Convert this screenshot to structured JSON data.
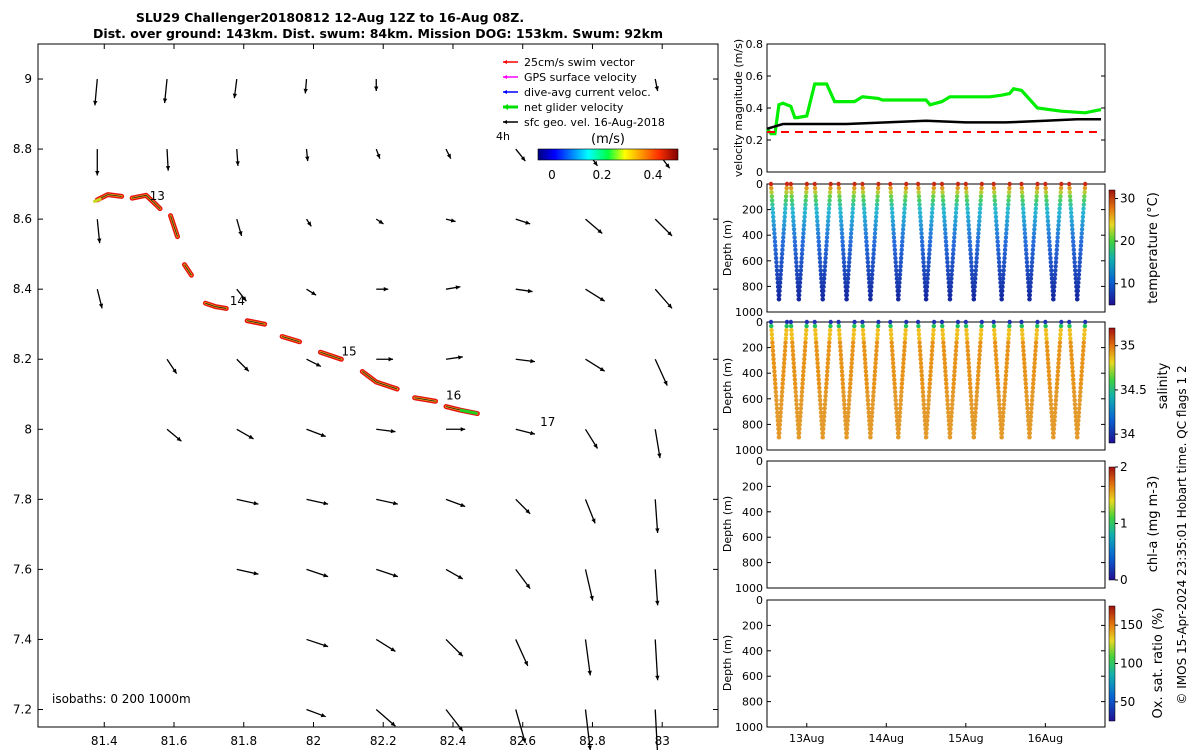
{
  "figure": {
    "title_line1": "SLU29 Challenger20180812 12-Aug 12Z to 16-Aug 08Z.",
    "title_line2": "Dist. over ground: 143km. Dist. swum: 84km. Mission DOG: 153km. Swum: 92km",
    "side_note": "© IMOS 15-Apr-2024 23:35:01 Hobart time. QC flags 1  2"
  },
  "chart_data": [
    {
      "type": "scatter",
      "name": "map",
      "x_ticks": [
        "81.4",
        "81.6",
        "81.8",
        "82",
        "82.2",
        "82.4",
        "82.6",
        "82.8",
        "83"
      ],
      "y_ticks": [
        "9",
        "8.8",
        "8.6",
        "8.4",
        "8.2",
        "8",
        "7.8",
        "7.6",
        "7.4",
        "7.2"
      ],
      "xlim": [
        81.21,
        83.16
      ],
      "ylim": [
        7.15,
        9.1
      ],
      "legend": {
        "placement": "top-right",
        "items": [
          {
            "label": "25cm/s swim vector",
            "color": "#ff0000"
          },
          {
            "label": "GPS surface velocity",
            "color": "#ff00ff"
          },
          {
            "label": "dive-avg current veloc.",
            "color": "#0000ff"
          },
          {
            "label": "net glider velocity",
            "color": "#00dd00"
          },
          {
            "label": "sfc geo. vel. 16-Aug-2018",
            "color": "#000000"
          }
        ]
      },
      "scale_label": "4h",
      "colorbar": {
        "label": "(m/s)",
        "ticks": [
          "0",
          "0.2",
          "0.4"
        ],
        "range": [
          0,
          0.55
        ]
      },
      "isobaths_label": "isobaths: 0   200  1000m",
      "day_labels": [
        {
          "text": "13",
          "x": 81.53,
          "y": 8.655
        },
        {
          "text": "14",
          "x": 81.76,
          "y": 8.355
        },
        {
          "text": "15",
          "x": 82.08,
          "y": 8.21
        },
        {
          "text": "16",
          "x": 82.38,
          "y": 8.085
        },
        {
          "text": "17",
          "x": 82.65,
          "y": 8.01
        }
      ],
      "track_segments": [
        [
          [
            81.38,
            8.655
          ],
          [
            81.41,
            8.67
          ],
          [
            81.45,
            8.665
          ]
        ],
        [
          [
            81.48,
            8.66
          ],
          [
            81.52,
            8.668
          ],
          [
            81.55,
            8.64
          ],
          [
            81.56,
            8.63
          ]
        ],
        [
          [
            81.59,
            8.61
          ],
          [
            81.61,
            8.55
          ]
        ],
        [
          [
            81.63,
            8.47
          ],
          [
            81.65,
            8.44
          ]
        ],
        [
          [
            81.69,
            8.36
          ],
          [
            81.72,
            8.35
          ],
          [
            81.75,
            8.345
          ]
        ],
        [
          [
            81.81,
            8.31
          ],
          [
            81.86,
            8.3
          ]
        ],
        [
          [
            81.91,
            8.265
          ],
          [
            81.96,
            8.25
          ]
        ],
        [
          [
            82.02,
            8.22
          ],
          [
            82.08,
            8.2
          ]
        ],
        [
          [
            82.14,
            8.165
          ],
          [
            82.18,
            8.135
          ],
          [
            82.24,
            8.115
          ]
        ],
        [
          [
            82.29,
            8.09
          ],
          [
            82.35,
            8.08
          ]
        ],
        [
          [
            82.38,
            8.065
          ],
          [
            82.42,
            8.055
          ],
          [
            82.47,
            8.045
          ]
        ]
      ],
      "current_arrows": [
        {
          "lon": 81.38,
          "lat": 9.0,
          "u": -0.02,
          "v": -0.22
        },
        {
          "lon": 81.58,
          "lat": 9.0,
          "u": -0.02,
          "v": -0.2
        },
        {
          "lon": 81.78,
          "lat": 9.0,
          "u": -0.02,
          "v": -0.16
        },
        {
          "lon": 81.98,
          "lat": 9.0,
          "u": -0.01,
          "v": -0.12
        },
        {
          "lon": 82.18,
          "lat": 9.0,
          "u": 0.0,
          "v": -0.1
        },
        {
          "lon": 82.98,
          "lat": 9.0,
          "u": 0.02,
          "v": -0.1
        },
        {
          "lon": 81.38,
          "lat": 8.8,
          "u": 0.0,
          "v": -0.22
        },
        {
          "lon": 81.58,
          "lat": 8.8,
          "u": 0.01,
          "v": -0.18
        },
        {
          "lon": 81.78,
          "lat": 8.8,
          "u": 0.01,
          "v": -0.14
        },
        {
          "lon": 81.98,
          "lat": 8.8,
          "u": 0.01,
          "v": -0.1
        },
        {
          "lon": 82.18,
          "lat": 8.8,
          "u": 0.03,
          "v": -0.08
        },
        {
          "lon": 82.38,
          "lat": 8.8,
          "u": 0.04,
          "v": -0.08
        },
        {
          "lon": 82.58,
          "lat": 8.8,
          "u": 0.08,
          "v": -0.1
        },
        {
          "lon": 82.78,
          "lat": 8.8,
          "u": 0.1,
          "v": -0.14
        },
        {
          "lon": 82.98,
          "lat": 8.8,
          "u": 0.12,
          "v": -0.16
        },
        {
          "lon": 81.38,
          "lat": 8.6,
          "u": 0.02,
          "v": -0.2
        },
        {
          "lon": 81.78,
          "lat": 8.6,
          "u": 0.04,
          "v": -0.14
        },
        {
          "lon": 81.98,
          "lat": 8.6,
          "u": 0.04,
          "v": -0.06
        },
        {
          "lon": 82.18,
          "lat": 8.6,
          "u": 0.06,
          "v": -0.04
        },
        {
          "lon": 82.38,
          "lat": 8.6,
          "u": 0.08,
          "v": -0.02
        },
        {
          "lon": 82.58,
          "lat": 8.6,
          "u": 0.12,
          "v": -0.04
        },
        {
          "lon": 82.78,
          "lat": 8.6,
          "u": 0.14,
          "v": -0.12
        },
        {
          "lon": 82.98,
          "lat": 8.6,
          "u": 0.14,
          "v": -0.14
        },
        {
          "lon": 81.38,
          "lat": 8.4,
          "u": 0.04,
          "v": -0.16
        },
        {
          "lon": 81.78,
          "lat": 8.4,
          "u": 0.08,
          "v": -0.1
        },
        {
          "lon": 81.98,
          "lat": 8.4,
          "u": 0.08,
          "v": -0.05
        },
        {
          "lon": 82.18,
          "lat": 8.4,
          "u": 0.1,
          "v": 0.0
        },
        {
          "lon": 82.38,
          "lat": 8.4,
          "u": 0.12,
          "v": 0.02
        },
        {
          "lon": 82.58,
          "lat": 8.4,
          "u": 0.14,
          "v": -0.02
        },
        {
          "lon": 82.78,
          "lat": 8.4,
          "u": 0.16,
          "v": -0.1
        },
        {
          "lon": 82.98,
          "lat": 8.4,
          "u": 0.14,
          "v": -0.16
        },
        {
          "lon": 81.58,
          "lat": 8.2,
          "u": 0.08,
          "v": -0.12
        },
        {
          "lon": 81.78,
          "lat": 8.2,
          "u": 0.1,
          "v": -0.1
        },
        {
          "lon": 81.98,
          "lat": 8.2,
          "u": 0.12,
          "v": -0.06
        },
        {
          "lon": 82.18,
          "lat": 8.2,
          "u": 0.14,
          "v": 0.0
        },
        {
          "lon": 82.38,
          "lat": 8.2,
          "u": 0.14,
          "v": 0.02
        },
        {
          "lon": 82.58,
          "lat": 8.2,
          "u": 0.16,
          "v": -0.02
        },
        {
          "lon": 82.78,
          "lat": 8.2,
          "u": 0.16,
          "v": -0.1
        },
        {
          "lon": 82.98,
          "lat": 8.2,
          "u": 0.1,
          "v": -0.22
        },
        {
          "lon": 81.58,
          "lat": 8.0,
          "u": 0.12,
          "v": -0.1
        },
        {
          "lon": 81.78,
          "lat": 8.0,
          "u": 0.14,
          "v": -0.08
        },
        {
          "lon": 81.98,
          "lat": 8.0,
          "u": 0.16,
          "v": -0.06
        },
        {
          "lon": 82.18,
          "lat": 8.0,
          "u": 0.16,
          "v": -0.02
        },
        {
          "lon": 82.38,
          "lat": 8.0,
          "u": 0.16,
          "v": 0.0
        },
        {
          "lon": 82.58,
          "lat": 8.0,
          "u": 0.16,
          "v": -0.04
        },
        {
          "lon": 82.78,
          "lat": 8.0,
          "u": 0.1,
          "v": -0.16
        },
        {
          "lon": 82.98,
          "lat": 8.0,
          "u": 0.04,
          "v": -0.24
        },
        {
          "lon": 81.78,
          "lat": 7.8,
          "u": 0.18,
          "v": -0.04
        },
        {
          "lon": 81.98,
          "lat": 7.8,
          "u": 0.18,
          "v": -0.04
        },
        {
          "lon": 82.18,
          "lat": 7.8,
          "u": 0.18,
          "v": -0.04
        },
        {
          "lon": 82.38,
          "lat": 7.8,
          "u": 0.16,
          "v": -0.06
        },
        {
          "lon": 82.58,
          "lat": 7.8,
          "u": 0.12,
          "v": -0.12
        },
        {
          "lon": 82.78,
          "lat": 7.8,
          "u": 0.08,
          "v": -0.2
        },
        {
          "lon": 82.98,
          "lat": 7.8,
          "u": 0.02,
          "v": -0.28
        },
        {
          "lon": 81.78,
          "lat": 7.6,
          "u": 0.18,
          "v": -0.04
        },
        {
          "lon": 81.98,
          "lat": 7.6,
          "u": 0.18,
          "v": -0.06
        },
        {
          "lon": 82.18,
          "lat": 7.6,
          "u": 0.18,
          "v": -0.06
        },
        {
          "lon": 82.38,
          "lat": 7.6,
          "u": 0.14,
          "v": -0.08
        },
        {
          "lon": 82.58,
          "lat": 7.6,
          "u": 0.12,
          "v": -0.16
        },
        {
          "lon": 82.78,
          "lat": 7.6,
          "u": 0.06,
          "v": -0.26
        },
        {
          "lon": 82.98,
          "lat": 7.6,
          "u": 0.02,
          "v": -0.3
        },
        {
          "lon": 81.98,
          "lat": 7.4,
          "u": 0.18,
          "v": -0.06
        },
        {
          "lon": 82.18,
          "lat": 7.4,
          "u": 0.16,
          "v": -0.1
        },
        {
          "lon": 82.38,
          "lat": 7.4,
          "u": 0.14,
          "v": -0.14
        },
        {
          "lon": 82.58,
          "lat": 7.4,
          "u": 0.1,
          "v": -0.22
        },
        {
          "lon": 82.78,
          "lat": 7.4,
          "u": 0.04,
          "v": -0.3
        },
        {
          "lon": 82.98,
          "lat": 7.4,
          "u": 0.02,
          "v": -0.34
        },
        {
          "lon": 81.98,
          "lat": 7.2,
          "u": 0.16,
          "v": -0.06
        },
        {
          "lon": 82.18,
          "lat": 7.2,
          "u": 0.16,
          "v": -0.14
        },
        {
          "lon": 82.38,
          "lat": 7.2,
          "u": 0.14,
          "v": -0.18
        },
        {
          "lon": 82.58,
          "lat": 7.2,
          "u": 0.08,
          "v": -0.28
        },
        {
          "lon": 82.78,
          "lat": 7.2,
          "u": 0.04,
          "v": -0.34
        },
        {
          "lon": 82.98,
          "lat": 7.2,
          "u": 0.02,
          "v": -0.38
        }
      ]
    },
    {
      "type": "line",
      "name": "velocity",
      "ylabel": "velocity magnitude (m/s)",
      "y_ticks": [
        "0",
        "0.2",
        "0.4",
        "0.6",
        "0.8"
      ],
      "ylim": [
        0,
        0.8
      ],
      "xlim": [
        12.5,
        16.75
      ],
      "series": [
        {
          "color": "#00ee00",
          "x": [
            12.5,
            12.55,
            12.6,
            12.65,
            12.7,
            12.8,
            12.85,
            12.88,
            13.0,
            13.1,
            13.2,
            13.25,
            13.35,
            13.5,
            13.6,
            13.7,
            13.9,
            13.95,
            14.3,
            14.5,
            14.55,
            14.7,
            14.8,
            15.3,
            15.45,
            15.55,
            15.6,
            15.7,
            15.9,
            16.2,
            16.5,
            16.7
          ],
          "y": [
            0.27,
            0.24,
            0.24,
            0.42,
            0.43,
            0.41,
            0.34,
            0.34,
            0.35,
            0.55,
            0.55,
            0.55,
            0.44,
            0.44,
            0.44,
            0.47,
            0.46,
            0.45,
            0.45,
            0.45,
            0.42,
            0.44,
            0.47,
            0.47,
            0.48,
            0.49,
            0.52,
            0.51,
            0.4,
            0.38,
            0.37,
            0.39
          ]
        },
        {
          "color": "#000000",
          "x": [
            12.5,
            12.7,
            13.0,
            13.5,
            14.0,
            14.5,
            15.0,
            15.5,
            16.0,
            16.4,
            16.7
          ],
          "y": [
            0.27,
            0.3,
            0.3,
            0.3,
            0.31,
            0.32,
            0.31,
            0.31,
            0.32,
            0.33,
            0.33
          ]
        },
        {
          "color": "#ff0000",
          "dashed": true,
          "x": [
            12.5,
            16.7
          ],
          "y": [
            0.25,
            0.25
          ]
        }
      ]
    },
    {
      "type": "scatter",
      "name": "temperature",
      "ylabel": "Depth (m)",
      "y_ticks": [
        "0",
        "200",
        "400",
        "600",
        "800",
        "1000"
      ],
      "ylim": [
        1000,
        0
      ],
      "cbar_label": "temperature (°C)",
      "cbar_ticks": [
        "10",
        "20",
        "30"
      ],
      "cbar_range": [
        5,
        32
      ],
      "dive_start_days": [
        12.55,
        12.8,
        13.1,
        13.4,
        13.7,
        14.05,
        14.4,
        14.7,
        15.0,
        15.35,
        15.7,
        16.0,
        16.3
      ],
      "max_depth": 900
    },
    {
      "type": "scatter",
      "name": "salinity",
      "ylabel": "Depth (m)",
      "y_ticks": [
        "0",
        "200",
        "400",
        "600",
        "800",
        "1000"
      ],
      "ylim": [
        1000,
        0
      ],
      "cbar_label": "salinity",
      "cbar_ticks": [
        "34",
        "34.5",
        "35"
      ],
      "cbar_range": [
        33.9,
        35.2
      ],
      "dive_start_days": [
        12.55,
        12.8,
        13.1,
        13.4,
        13.7,
        14.05,
        14.4,
        14.7,
        15.0,
        15.35,
        15.7,
        16.0,
        16.3
      ],
      "max_depth": 900
    },
    {
      "type": "scatter",
      "name": "chl",
      "ylabel": "Depth (m)",
      "y_ticks": [
        "0",
        "200",
        "400",
        "600",
        "800",
        "1000"
      ],
      "ylim": [
        1000,
        0
      ],
      "cbar_label": "chl-a (mg m-3)",
      "cbar_ticks": [
        "0",
        "1",
        "2"
      ],
      "cbar_range": [
        0,
        2
      ]
    },
    {
      "type": "scatter",
      "name": "oxygen",
      "ylabel": "Depth (m)",
      "y_ticks": [
        "0",
        "200",
        "400",
        "600",
        "800",
        "1000"
      ],
      "ylim": [
        1000,
        0
      ],
      "x_ticks": [
        "13Aug",
        "14Aug",
        "15Aug",
        "16Aug"
      ],
      "cbar_label": "Ox. sat. ratio (%)",
      "cbar_ticks": [
        "50",
        "100",
        "150"
      ],
      "cbar_range": [
        25,
        175
      ]
    }
  ]
}
